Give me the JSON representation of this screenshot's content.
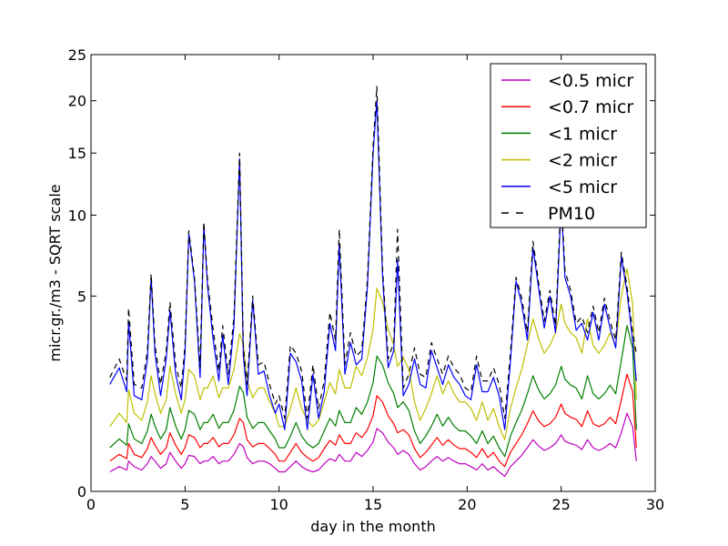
{
  "chart_data": {
    "type": "line",
    "xlabel": "day in the month",
    "ylabel": "micr.gr./m3 - SQRT scale",
    "y_scale": "sqrt",
    "xlim": [
      0,
      30
    ],
    "ylim": [
      0,
      25
    ],
    "x_ticks": [
      0,
      5,
      10,
      15,
      20,
      25,
      30
    ],
    "y_ticks": [
      0,
      5,
      10,
      15,
      20,
      25
    ],
    "x_tick_labels": [
      "0",
      "5",
      "10",
      "15",
      "20",
      "25",
      "30"
    ],
    "y_tick_labels": [
      "0",
      "5",
      "10",
      "15",
      "20",
      "25"
    ],
    "legend_position": "top-right",
    "x": [
      1.0,
      1.5,
      1.9,
      2.0,
      2.3,
      2.7,
      3.0,
      3.2,
      3.4,
      3.7,
      4.0,
      4.2,
      4.5,
      4.8,
      5.0,
      5.2,
      5.5,
      5.8,
      6.0,
      6.2,
      6.5,
      6.8,
      7.0,
      7.3,
      7.6,
      7.9,
      8.1,
      8.3,
      8.6,
      8.9,
      9.2,
      9.5,
      9.8,
      10.0,
      10.3,
      10.6,
      10.9,
      11.2,
      11.5,
      11.8,
      12.1,
      12.4,
      12.7,
      13.0,
      13.2,
      13.5,
      13.8,
      14.1,
      14.4,
      14.7,
      15.0,
      15.2,
      15.5,
      15.8,
      16.1,
      16.3,
      16.6,
      16.9,
      17.2,
      17.5,
      17.8,
      18.1,
      18.4,
      18.7,
      19.0,
      19.3,
      19.6,
      19.9,
      20.2,
      20.5,
      20.8,
      21.1,
      21.4,
      21.7,
      22.0,
      22.3,
      22.6,
      22.9,
      23.2,
      23.5,
      23.8,
      24.1,
      24.4,
      24.7,
      25.0,
      25.2,
      25.5,
      25.8,
      26.1,
      26.4,
      26.7,
      27.0,
      27.3,
      27.6,
      27.9,
      28.2,
      28.5,
      28.8,
      29.0
    ],
    "series": [
      {
        "name": "<0.5 micr",
        "color": "#bf00bf",
        "dash": "solid",
        "values": [
          0.05,
          0.08,
          0.06,
          0.12,
          0.08,
          0.06,
          0.1,
          0.16,
          0.12,
          0.07,
          0.1,
          0.2,
          0.12,
          0.07,
          0.1,
          0.17,
          0.16,
          0.1,
          0.12,
          0.12,
          0.16,
          0.1,
          0.12,
          0.12,
          0.18,
          0.3,
          0.26,
          0.15,
          0.1,
          0.12,
          0.12,
          0.1,
          0.07,
          0.05,
          0.05,
          0.08,
          0.12,
          0.08,
          0.06,
          0.05,
          0.06,
          0.1,
          0.14,
          0.12,
          0.18,
          0.12,
          0.12,
          0.2,
          0.16,
          0.22,
          0.32,
          0.52,
          0.45,
          0.32,
          0.25,
          0.18,
          0.22,
          0.18,
          0.1,
          0.06,
          0.08,
          0.12,
          0.16,
          0.12,
          0.15,
          0.12,
          0.1,
          0.1,
          0.08,
          0.06,
          0.1,
          0.06,
          0.08,
          0.05,
          0.03,
          0.08,
          0.12,
          0.17,
          0.25,
          0.35,
          0.27,
          0.22,
          0.25,
          0.3,
          0.42,
          0.33,
          0.3,
          0.28,
          0.23,
          0.35,
          0.25,
          0.22,
          0.25,
          0.3,
          0.25,
          0.45,
          0.8,
          0.55,
          0.12
        ]
      },
      {
        "name": "<0.7 micr",
        "color": "#ff0000",
        "dash": "solid",
        "values": [
          0.12,
          0.18,
          0.14,
          0.3,
          0.18,
          0.15,
          0.24,
          0.38,
          0.28,
          0.18,
          0.25,
          0.45,
          0.28,
          0.18,
          0.25,
          0.42,
          0.38,
          0.25,
          0.3,
          0.3,
          0.38,
          0.26,
          0.3,
          0.3,
          0.42,
          0.7,
          0.62,
          0.35,
          0.26,
          0.3,
          0.3,
          0.24,
          0.18,
          0.12,
          0.12,
          0.2,
          0.3,
          0.2,
          0.15,
          0.12,
          0.15,
          0.24,
          0.34,
          0.28,
          0.42,
          0.3,
          0.3,
          0.45,
          0.38,
          0.5,
          0.75,
          1.2,
          1.05,
          0.75,
          0.6,
          0.45,
          0.5,
          0.42,
          0.24,
          0.15,
          0.2,
          0.28,
          0.38,
          0.28,
          0.35,
          0.28,
          0.24,
          0.24,
          0.2,
          0.15,
          0.24,
          0.15,
          0.2,
          0.12,
          0.08,
          0.2,
          0.3,
          0.42,
          0.6,
          0.85,
          0.65,
          0.55,
          0.6,
          0.72,
          1.0,
          0.8,
          0.72,
          0.68,
          0.55,
          0.85,
          0.6,
          0.55,
          0.6,
          0.72,
          0.6,
          1.1,
          1.8,
          1.3,
          0.25
        ]
      },
      {
        "name": "<1 micr",
        "color": "#008000",
        "dash": "solid",
        "values": [
          0.25,
          0.36,
          0.28,
          0.6,
          0.36,
          0.3,
          0.48,
          0.78,
          0.56,
          0.36,
          0.5,
          0.92,
          0.56,
          0.36,
          0.5,
          0.86,
          0.78,
          0.5,
          0.62,
          0.62,
          0.78,
          0.52,
          0.62,
          0.62,
          0.86,
          1.45,
          1.28,
          0.72,
          0.52,
          0.62,
          0.62,
          0.48,
          0.36,
          0.25,
          0.25,
          0.4,
          0.62,
          0.4,
          0.3,
          0.25,
          0.3,
          0.48,
          0.7,
          0.56,
          0.86,
          0.62,
          0.62,
          0.92,
          0.78,
          1.05,
          1.55,
          2.4,
          2.1,
          1.55,
          1.25,
          0.92,
          1.05,
          0.86,
          0.48,
          0.3,
          0.4,
          0.56,
          0.78,
          0.56,
          0.72,
          0.56,
          0.48,
          0.48,
          0.4,
          0.3,
          0.48,
          0.3,
          0.4,
          0.25,
          0.16,
          0.4,
          0.62,
          0.86,
          1.25,
          1.75,
          1.35,
          1.12,
          1.25,
          1.48,
          2.05,
          1.65,
          1.48,
          1.4,
          1.12,
          1.75,
          1.25,
          1.12,
          1.25,
          1.48,
          1.25,
          2.25,
          3.6,
          2.7,
          0.5
        ]
      },
      {
        "name": "<2 micr",
        "color": "#bfbf00",
        "dash": "solid",
        "values": [
          0.55,
          0.8,
          0.62,
          1.35,
          0.8,
          0.66,
          1.05,
          1.75,
          1.25,
          0.8,
          1.1,
          2.05,
          1.25,
          0.8,
          1.1,
          1.95,
          1.75,
          1.1,
          1.4,
          1.4,
          1.75,
          1.15,
          1.4,
          1.4,
          1.95,
          3.25,
          2.85,
          1.6,
          1.15,
          1.4,
          1.4,
          1.05,
          0.8,
          0.55,
          0.55,
          0.9,
          1.4,
          0.9,
          0.66,
          0.55,
          0.66,
          1.05,
          1.55,
          1.25,
          1.95,
          1.4,
          1.4,
          2.05,
          1.75,
          2.35,
          3.45,
          5.4,
          4.7,
          3.45,
          2.8,
          2.05,
          2.35,
          1.95,
          1.05,
          0.66,
          0.9,
          1.25,
          1.75,
          1.25,
          1.6,
          1.25,
          1.05,
          1.05,
          0.9,
          0.66,
          1.05,
          0.66,
          0.9,
          0.55,
          0.35,
          0.9,
          1.4,
          1.95,
          2.8,
          3.9,
          3.05,
          2.5,
          2.8,
          3.3,
          4.6,
          3.7,
          3.3,
          3.1,
          2.5,
          3.9,
          2.8,
          2.5,
          2.8,
          3.3,
          2.8,
          5.0,
          6.5,
          4.6,
          1.1
        ]
      },
      {
        "name": "<5 micr",
        "color": "#0000ff",
        "dash": "solid",
        "values": [
          1.5,
          2.0,
          1.3,
          3.8,
          1.2,
          1.1,
          2.3,
          6.0,
          2.5,
          1.2,
          2.3,
          4.3,
          1.8,
          1.1,
          2.5,
          8.7,
          5.8,
          1.7,
          9.3,
          5.5,
          3.0,
          1.6,
          3.2,
          1.5,
          3.6,
          14.5,
          2.4,
          1.2,
          4.8,
          1.8,
          1.9,
          1.2,
          0.8,
          1.0,
          0.5,
          2.5,
          2.2,
          1.6,
          0.5,
          1.8,
          0.7,
          1.3,
          3.7,
          2.6,
          8.0,
          1.8,
          2.9,
          2.1,
          2.3,
          5.5,
          15.0,
          20.0,
          6.2,
          2.0,
          2.6,
          7.0,
          1.2,
          1.5,
          2.3,
          1.5,
          1.4,
          2.6,
          2.0,
          1.5,
          2.1,
          1.7,
          1.5,
          1.2,
          1.1,
          2.1,
          1.3,
          1.3,
          1.7,
          1.2,
          0.5,
          2.2,
          5.8,
          4.6,
          3.0,
          7.8,
          5.4,
          3.5,
          5.0,
          3.3,
          11.0,
          6.0,
          5.0,
          3.4,
          3.7,
          3.0,
          4.2,
          3.0,
          4.6,
          3.5,
          2.7,
          7.2,
          5.2,
          3.0,
          1.6
        ]
      },
      {
        "name": "PM10",
        "color": "#000000",
        "dash": "dashed",
        "values": [
          1.7,
          2.3,
          1.6,
          4.4,
          1.5,
          1.4,
          2.6,
          6.2,
          2.8,
          1.5,
          2.6,
          4.7,
          2.1,
          1.4,
          2.8,
          8.9,
          6.0,
          2.0,
          9.5,
          5.8,
          3.4,
          1.9,
          3.6,
          1.8,
          4.0,
          15.0,
          2.7,
          1.5,
          5.0,
          2.1,
          2.2,
          1.5,
          1.0,
          1.2,
          0.7,
          2.8,
          2.5,
          1.9,
          0.7,
          2.1,
          0.9,
          1.6,
          4.2,
          3.0,
          9.0,
          2.1,
          3.3,
          2.4,
          2.6,
          5.9,
          15.6,
          21.5,
          6.6,
          2.3,
          2.9,
          9.0,
          1.4,
          1.8,
          2.7,
          1.8,
          1.7,
          2.9,
          2.3,
          1.8,
          2.4,
          2.0,
          1.8,
          1.4,
          1.3,
          2.4,
          1.6,
          1.6,
          2.0,
          1.5,
          0.7,
          2.5,
          6.0,
          4.9,
          3.3,
          8.2,
          5.7,
          3.8,
          5.3,
          3.6,
          11.5,
          6.4,
          5.3,
          3.7,
          4.0,
          3.3,
          4.5,
          3.3,
          4.9,
          3.8,
          3.0,
          7.5,
          5.5,
          3.3,
          2.5
        ]
      }
    ]
  }
}
